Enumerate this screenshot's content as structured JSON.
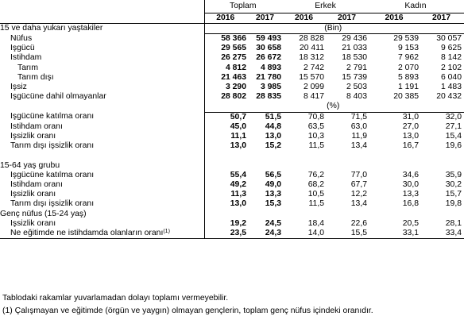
{
  "groups": [
    "Toplam",
    "Erkek",
    "Kadın"
  ],
  "years": [
    "2016",
    "2017",
    "2016",
    "2017",
    "2016",
    "2017"
  ],
  "section1": {
    "title": "15 ve daha yukarı yaştakiler",
    "unit": "(Bin)",
    "rows": [
      {
        "label": "Nüfus",
        "indent": 1,
        "values": [
          "58 366",
          "59 493",
          "28 828",
          "29 436",
          "29 539",
          "30 057"
        ]
      },
      {
        "label": "İşgücü",
        "indent": 1,
        "values": [
          "29 565",
          "30 658",
          "20 411",
          "21 033",
          "9 153",
          "9 625"
        ]
      },
      {
        "label": "İstihdam",
        "indent": 1,
        "values": [
          "26 275",
          "26 672",
          "18 312",
          "18 530",
          "7 962",
          "8 142"
        ]
      },
      {
        "label": "Tarım",
        "indent": 2,
        "values": [
          "4 812",
          "4 893",
          "2 742",
          "2 791",
          "2 070",
          "2 102"
        ]
      },
      {
        "label": "Tarım dışı",
        "indent": 2,
        "values": [
          "21 463",
          "21 780",
          "15 570",
          "15 739",
          "5 893",
          "6 040"
        ]
      },
      {
        "label": "İşsiz",
        "indent": 1,
        "values": [
          "3 290",
          "3 985",
          "2 099",
          "2 503",
          "1 191",
          "1 483"
        ]
      },
      {
        "label": "İşgücüne dahil olmayanlar",
        "indent": 1,
        "values": [
          "28 802",
          "28 835",
          "8 417",
          "8 403",
          "20 385",
          "20 432"
        ]
      }
    ],
    "unit2": "(%)",
    "rates": [
      {
        "label": "İşgücüne katılma oranı",
        "indent": 1,
        "values": [
          "50,7",
          "51,5",
          "70,8",
          "71,5",
          "31,0",
          "32,0"
        ]
      },
      {
        "label": "İstihdam oranı",
        "indent": 1,
        "values": [
          "45,0",
          "44,8",
          "63,5",
          "63,0",
          "27,0",
          "27,1"
        ]
      },
      {
        "label": "İşsizlik oranı",
        "indent": 1,
        "values": [
          "11,1",
          "13,0",
          "10,3",
          "11,9",
          "13,0",
          "15,4"
        ]
      },
      {
        "label": "Tarım dışı işsizlik oranı",
        "indent": 1,
        "values": [
          "13,0",
          "15,2",
          "11,5",
          "13,4",
          "16,7",
          "19,6"
        ]
      }
    ]
  },
  "section2": {
    "title": "15-64 yaş grubu",
    "rows": [
      {
        "label": "İşgücüne katılma oranı",
        "indent": 1,
        "values": [
          "55,4",
          "56,5",
          "76,2",
          "77,0",
          "34,6",
          "35,9"
        ]
      },
      {
        "label": "İstihdam oranı",
        "indent": 1,
        "values": [
          "49,2",
          "49,0",
          "68,2",
          "67,7",
          "30,0",
          "30,2"
        ]
      },
      {
        "label": "İşsizlik oranı",
        "indent": 1,
        "values": [
          "11,3",
          "13,3",
          "10,5",
          "12,2",
          "13,3",
          "15,7"
        ]
      },
      {
        "label": "Tarım dışı işsizlik oranı",
        "indent": 1,
        "values": [
          "13,0",
          "15,3",
          "11,5",
          "13,4",
          "16,8",
          "19,8"
        ]
      }
    ]
  },
  "section3": {
    "title": "Genç nüfus (15-24 yaş)",
    "rows": [
      {
        "label": "İşsizlik oranı",
        "indent": 1,
        "values": [
          "19,2",
          "24,5",
          "18,4",
          "22,6",
          "20,5",
          "28,1"
        ]
      },
      {
        "label": "Ne eğitimde ne istihdamda olanların oranı",
        "sup": "(1)",
        "indent": 1,
        "values": [
          "23,5",
          "24,3",
          "14,0",
          "15,5",
          "33,1",
          "33,4"
        ]
      }
    ]
  },
  "footnotes": {
    "note1": "Tablodaki rakamlar yuvarlamadan dolayı toplamı vermeyebilir.",
    "note2": "(1) Çalışmayan ve eğitimde (örgün ve yaygın) olmayan gençlerin, toplam genç nüfus içindeki oranıdır."
  }
}
